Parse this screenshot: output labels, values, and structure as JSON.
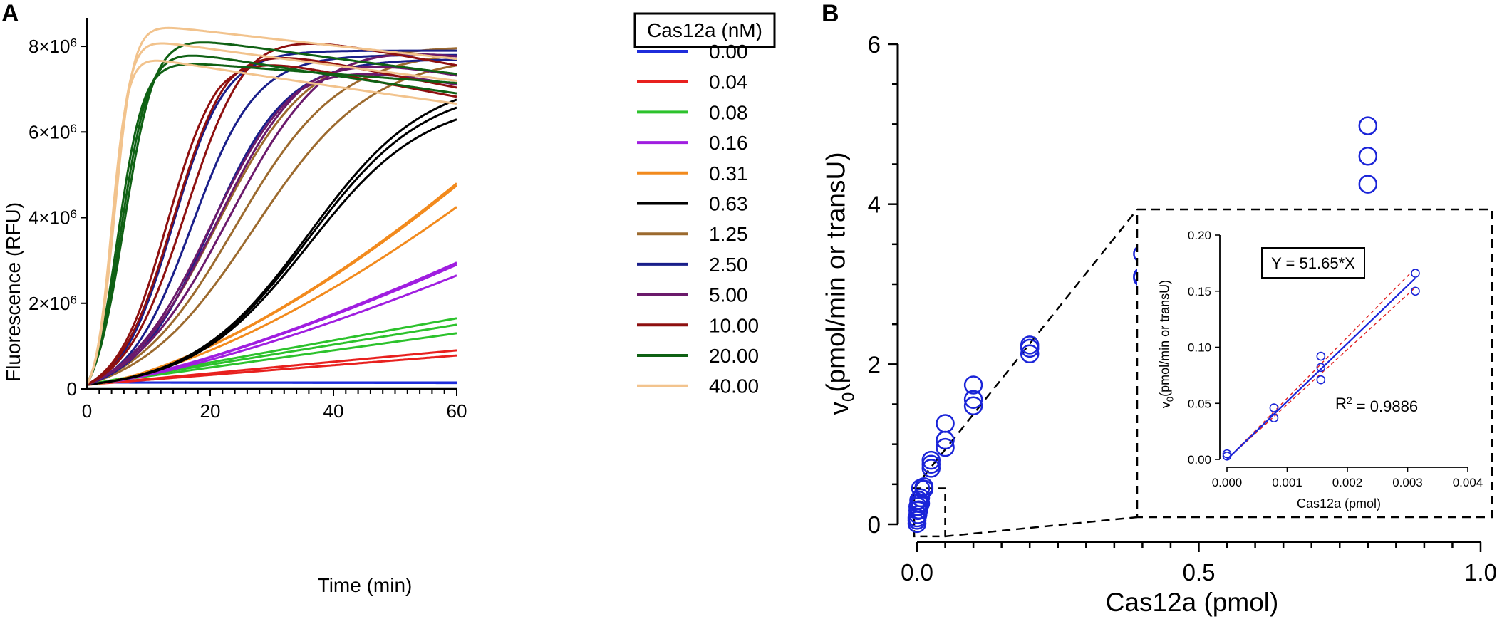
{
  "panel_a": {
    "label": "A",
    "legend_title": "Cas12a (nM)",
    "colors": [
      "#1f2ddb",
      "#e8201e",
      "#2cc22c",
      "#a01ee0",
      "#f28a1d",
      "#000000",
      "#9c6a2e",
      "#1a1f8a",
      "#6b1a6b",
      "#8e1010",
      "#0f6114",
      "#f2c38d"
    ]
  },
  "panel_b": {
    "label": "B"
  },
  "chart_data": [
    {
      "type": "line",
      "title": "",
      "xlabel": "Time (min)",
      "ylabel": "Fluorescence (RFU)",
      "xlim": [
        0,
        60
      ],
      "ylim": [
        0,
        8500000
      ],
      "x_ticks": [
        0,
        20,
        40,
        60
      ],
      "x_tick_labels": [
        "0",
        "20",
        "40",
        "60"
      ],
      "y_ticks": [
        0,
        2000000,
        4000000,
        6000000,
        8000000
      ],
      "y_tick_labels": [
        [
          "0",
          ""
        ],
        [
          "2×10",
          "6"
        ],
        [
          "4×10",
          "6"
        ],
        [
          "6×10",
          "6"
        ],
        [
          "8×10",
          "6"
        ]
      ],
      "legend_title": "Cas12a (nM)",
      "legend_position": "right",
      "series": [
        {
          "name": "0.00",
          "model": "linear",
          "start": 150000,
          "replicates": [
            150000,
            145000,
            140000
          ]
        },
        {
          "name": "0.04",
          "model": "linear",
          "start": 100000,
          "replicates": [
            900000,
            780000
          ]
        },
        {
          "name": "0.08",
          "model": "linear",
          "start": 100000,
          "replicates": [
            1650000,
            1500000,
            1300000
          ]
        },
        {
          "name": "0.16",
          "model": "power",
          "start": 100000,
          "exponent": 1.35,
          "replicates": [
            2950000,
            2900000,
            2650000
          ]
        },
        {
          "name": "0.31",
          "model": "power",
          "start": 100000,
          "exponent": 1.5,
          "replicates": [
            4800000,
            4750000,
            4250000
          ]
        },
        {
          "name": "0.63",
          "model": "logistic",
          "start": 100000,
          "replicates": [
            [
              7300000,
              36,
              9.5
            ],
            [
              7100000,
              36,
              9.5
            ],
            [
              6800000,
              36,
              9.5
            ]
          ]
        },
        {
          "name": "1.25",
          "model": "logistic",
          "start": 100000,
          "replicates": [
            [
              8000000,
              21,
              7.5
            ],
            [
              7900000,
              24,
              8.5
            ],
            [
              7800000,
              27,
              9.5
            ]
          ]
        },
        {
          "name": "2.50",
          "model": "logistic",
          "start": 100000,
          "replicates": [
            [
              7900000,
              14,
              4.2
            ],
            [
              7800000,
              17,
              5.2
            ],
            [
              7700000,
              20,
              6.2
            ]
          ]
        },
        {
          "name": "5.00",
          "model": "peak",
          "start": 100000,
          "replicates": [
            [
              8350000,
              23,
              8.1,
              0.003
            ],
            [
              8100000,
              21,
              7.3,
              0.004
            ],
            [
              7900000,
              20,
              7.0,
              0.004
            ]
          ]
        },
        {
          "name": "10.00",
          "model": "peak",
          "start": 100000,
          "replicates": [
            [
              8500000,
              16,
              5.0,
              0.0035
            ],
            [
              8150000,
              14,
              4.4,
              0.004
            ],
            [
              7950000,
              13,
              4.1,
              0.004
            ]
          ]
        },
        {
          "name": "20.00",
          "model": "peak",
          "start": 100000,
          "replicates": [
            [
              8300000,
              6,
              2.5,
              0.0025
            ],
            [
              8000000,
              5.5,
              2.3,
              0.003
            ],
            [
              7700000,
              5,
              2.1,
              0.0015
            ]
          ]
        },
        {
          "name": "40.00",
          "model": "peak",
          "start": 100000,
          "replicates": [
            [
              8550000,
              4.5,
              1.5,
              0.002
            ],
            [
              8200000,
              4.2,
              1.4,
              0.0025
            ],
            [
              7800000,
              4.0,
              1.3,
              0.003
            ]
          ]
        }
      ]
    },
    {
      "type": "scatter",
      "title": "",
      "xlabel": "Cas12a (pmol)",
      "ylabel": [
        "v",
        "0",
        "(pmol/min or transU)"
      ],
      "xlim": [
        0,
        1.0
      ],
      "ylim": [
        0,
        6
      ],
      "x_ticks": [
        0,
        0.5,
        1.0
      ],
      "x_tick_labels": [
        "0.0",
        "0.5",
        "1.0"
      ],
      "y_ticks": [
        0,
        2,
        4,
        6
      ],
      "y_tick_labels": [
        "0",
        "2",
        "4",
        "6"
      ],
      "x": [
        0.0,
        0.0,
        0.0,
        0.0016,
        0.0016,
        0.0016,
        0.0031,
        0.0031,
        0.0031,
        0.0063,
        0.0063,
        0.0063,
        0.0125,
        0.0125,
        0.025,
        0.025,
        0.025,
        0.05,
        0.05,
        0.05,
        0.1,
        0.1,
        0.1,
        0.2,
        0.2,
        0.2,
        0.4,
        0.4,
        0.4,
        0.8,
        0.8,
        0.8
      ],
      "y": [
        0.01,
        0.05,
        0.08,
        0.12,
        0.17,
        0.22,
        0.18,
        0.26,
        0.3,
        0.26,
        0.33,
        0.45,
        0.47,
        0.44,
        0.7,
        0.75,
        0.8,
        0.96,
        1.05,
        1.26,
        1.48,
        1.56,
        1.74,
        2.13,
        2.2,
        2.24,
        3.08,
        3.1,
        3.38,
        4.25,
        4.6,
        4.98
      ],
      "zoom_box": {
        "xlim": [
          -0.005,
          0.05
        ],
        "ylim": [
          -0.15,
          0.45
        ]
      }
    },
    {
      "type": "scatter",
      "title": "",
      "xlabel": "Cas12a (pmol)",
      "ylabel": [
        "v",
        "0",
        "(pmol/min or transU)"
      ],
      "xlim": [
        0,
        0.004
      ],
      "ylim": [
        0,
        0.2
      ],
      "x_ticks": [
        0,
        0.001,
        0.002,
        0.003,
        0.004
      ],
      "x_tick_labels": [
        "0.000",
        "0.001",
        "0.002",
        "0.003",
        "0.004"
      ],
      "y_ticks": [
        0,
        0.05,
        0.1,
        0.15,
        0.2
      ],
      "y_tick_labels": [
        "0.00",
        "0.05",
        "0.10",
        "0.15",
        "0.20"
      ],
      "x": [
        0.0,
        0.0,
        0.00078,
        0.00078,
        0.00156,
        0.00156,
        0.00156,
        0.00313,
        0.00313
      ],
      "y": [
        0.003,
        0.005,
        0.037,
        0.046,
        0.071,
        0.082,
        0.092,
        0.15,
        0.166
      ],
      "fit": {
        "slope": 51.65,
        "ci_slopes": [
          49.0,
          54.5
        ],
        "x_range": [
          0,
          0.00313
        ]
      },
      "equation": "Y = 51.65*X",
      "r_squared": [
        "R",
        "2",
        " = 0.9886"
      ]
    }
  ]
}
